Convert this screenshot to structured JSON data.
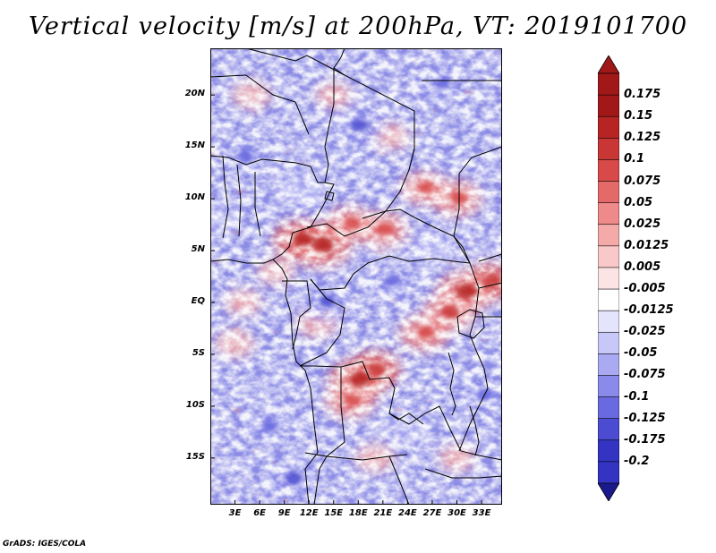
{
  "title": "Vertical velocity [m/s] at 200hPa, VT: 2019101700",
  "credit": "GrADS: IGES/COLA",
  "map": {
    "lon_range": [
      0,
      35.5
    ],
    "lat_range": [
      -19.5,
      24.5
    ],
    "field": "Vertical velocity",
    "units": "m/s",
    "level": "200hPa",
    "valid_time": "2019101700"
  },
  "y_axis": {
    "ticks": [
      {
        "lat": 20,
        "label": "20N"
      },
      {
        "lat": 15,
        "label": "15N"
      },
      {
        "lat": 10,
        "label": "10N"
      },
      {
        "lat": 5,
        "label": "5N"
      },
      {
        "lat": 0,
        "label": "EQ"
      },
      {
        "lat": -5,
        "label": "5S"
      },
      {
        "lat": -10,
        "label": "10S"
      },
      {
        "lat": -15,
        "label": "15S"
      }
    ]
  },
  "x_axis": {
    "ticks": [
      {
        "lon": 3,
        "label": "3E"
      },
      {
        "lon": 6,
        "label": "6E"
      },
      {
        "lon": 9,
        "label": "9E"
      },
      {
        "lon": 12,
        "label": "12E"
      },
      {
        "lon": 15,
        "label": "15E"
      },
      {
        "lon": 18,
        "label": "18E"
      },
      {
        "lon": 21,
        "label": "21E"
      },
      {
        "lon": 24,
        "label": "24E"
      },
      {
        "lon": 27,
        "label": "27E"
      },
      {
        "lon": 30,
        "label": "30E"
      },
      {
        "lon": 33,
        "label": "33E"
      }
    ]
  },
  "colorbar": {
    "levels": [
      {
        "label": "0.175",
        "color": "#a01818"
      },
      {
        "label": "0.15",
        "color": "#b62424"
      },
      {
        "label": "0.125",
        "color": "#c93636"
      },
      {
        "label": "0.1",
        "color": "#d84a4a"
      },
      {
        "label": "0.075",
        "color": "#e46a6a"
      },
      {
        "label": "0.05",
        "color": "#ee8a8a"
      },
      {
        "label": "0.025",
        "color": "#f5aaaa"
      },
      {
        "label": "0.0125",
        "color": "#f9c8c8"
      },
      {
        "label": "0.005",
        "color": "#fde4e4"
      },
      {
        "label": "-0.005",
        "color": "#ffffff"
      },
      {
        "label": "-0.0125",
        "color": "#e4e4fd"
      },
      {
        "label": "-0.025",
        "color": "#c8c8f8"
      },
      {
        "label": "-0.05",
        "color": "#aaaaf2"
      },
      {
        "label": "-0.075",
        "color": "#8a8aea"
      },
      {
        "label": "-0.1",
        "color": "#6a6ae0"
      },
      {
        "label": "-0.125",
        "color": "#4c4cd2"
      },
      {
        "label": "-0.175",
        "color": "#3434c2"
      },
      {
        "label": "-0.2",
        "color": "#2222aa"
      }
    ],
    "top_color": "#a01818",
    "bottom_color": "#2020a0",
    "extra_colors": [
      "#ffffff",
      "#1a1a8c"
    ]
  },
  "hotspots": [
    {
      "lon": 11,
      "lat": 6,
      "value": 0.15
    },
    {
      "lon": 13.5,
      "lat": 5.5,
      "value": 0.17
    },
    {
      "lon": 17,
      "lat": 7.5,
      "value": 0.12
    },
    {
      "lon": 21,
      "lat": 7,
      "value": 0.12
    },
    {
      "lon": 26,
      "lat": 11,
      "value": 0.1
    },
    {
      "lon": 30,
      "lat": 10,
      "value": 0.12
    },
    {
      "lon": 31,
      "lat": 1,
      "value": 0.15
    },
    {
      "lon": 34,
      "lat": 2,
      "value": 0.14
    },
    {
      "lon": 29,
      "lat": -1,
      "value": 0.13
    },
    {
      "lon": 26,
      "lat": -3,
      "value": 0.12
    },
    {
      "lon": 18,
      "lat": -7.5,
      "value": 0.16
    },
    {
      "lon": 20,
      "lat": -6.5,
      "value": 0.14
    },
    {
      "lon": 17,
      "lat": -9.5,
      "value": 0.12
    },
    {
      "lon": 4,
      "lat": 0,
      "value": 0.06
    },
    {
      "lon": 3,
      "lat": -4,
      "value": 0.07
    },
    {
      "lon": 8,
      "lat": 3,
      "value": 0.06
    },
    {
      "lon": 15,
      "lat": 20,
      "value": 0.06
    },
    {
      "lon": 22,
      "lat": 16,
      "value": 0.06
    },
    {
      "lon": 5,
      "lat": 20,
      "value": 0.07
    },
    {
      "lon": 20,
      "lat": -15,
      "value": 0.07
    },
    {
      "lon": 30,
      "lat": -15,
      "value": 0.06
    },
    {
      "lon": 13,
      "lat": -2,
      "value": 0.08
    },
    {
      "lon": 7,
      "lat": -12,
      "value": -0.1
    },
    {
      "lon": 14,
      "lat": 0,
      "value": -0.12
    },
    {
      "lon": 22,
      "lat": 2,
      "value": -0.1
    },
    {
      "lon": 4,
      "lat": 14,
      "value": -0.1
    },
    {
      "lon": 18,
      "lat": 17,
      "value": -0.12
    },
    {
      "lon": 28,
      "lat": 21,
      "value": -0.1
    },
    {
      "lon": 10,
      "lat": -17,
      "value": -0.12
    },
    {
      "lon": 24,
      "lat": -12,
      "value": -0.09
    },
    {
      "lon": 33,
      "lat": -9,
      "value": -0.1
    },
    {
      "lon": 1,
      "lat": 8,
      "value": -0.08
    },
    {
      "lon": 27,
      "lat": 5,
      "value": -0.08
    },
    {
      "lon": 11,
      "lat": 11,
      "value": -0.09
    }
  ]
}
